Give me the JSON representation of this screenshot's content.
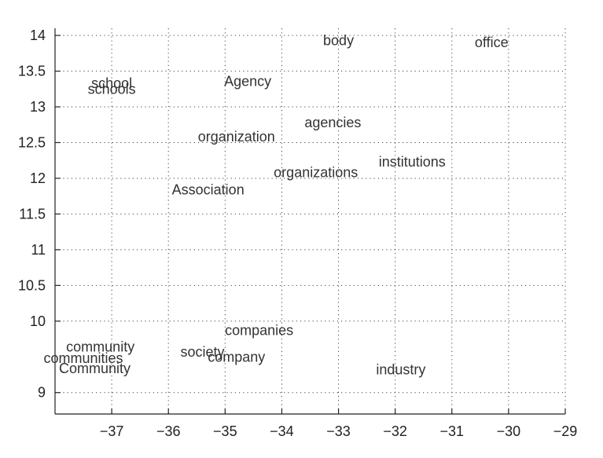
{
  "chart_data": {
    "type": "scatter",
    "title": "",
    "xlabel": "",
    "ylabel": "",
    "xlim": [
      -38,
      -29
    ],
    "ylim": [
      8.7,
      14.1
    ],
    "grid": true,
    "x_ticks": [
      -37,
      -36,
      -35,
      -34,
      -33,
      -32,
      -31,
      -30,
      -29
    ],
    "x_tick_labels": [
      "−37",
      "−36",
      "−35",
      "−34",
      "−33",
      "−32",
      "−31",
      "−30",
      "−29"
    ],
    "y_ticks": [
      9,
      10,
      10.5,
      11,
      11.5,
      12,
      12.5,
      13,
      13.5,
      14
    ],
    "y_tick_labels": [
      "9",
      "10",
      "10.5",
      "11",
      "11.5",
      "12",
      "12.5",
      "13",
      "13.5",
      "14"
    ],
    "points": [
      {
        "label": "body",
        "x": -33.0,
        "y": 13.93
      },
      {
        "label": "office",
        "x": -30.3,
        "y": 13.9
      },
      {
        "label": "school",
        "x": -37.0,
        "y": 13.33
      },
      {
        "label": "schools",
        "x": -37.0,
        "y": 13.25
      },
      {
        "label": "Agency",
        "x": -34.6,
        "y": 13.36
      },
      {
        "label": "agencies",
        "x": -33.1,
        "y": 12.78
      },
      {
        "label": "organization",
        "x": -34.8,
        "y": 12.58
      },
      {
        "label": "institutions",
        "x": -31.7,
        "y": 12.23
      },
      {
        "label": "organizations",
        "x": -33.4,
        "y": 12.08
      },
      {
        "label": "Association",
        "x": -35.3,
        "y": 11.84
      },
      {
        "label": "companies",
        "x": -34.4,
        "y": 9.87
      },
      {
        "label": "community",
        "x": -37.2,
        "y": 9.64
      },
      {
        "label": "society",
        "x": -35.4,
        "y": 9.57
      },
      {
        "label": "company",
        "x": -34.8,
        "y": 9.5
      },
      {
        "label": "communities",
        "x": -37.5,
        "y": 9.48
      },
      {
        "label": "Community",
        "x": -37.3,
        "y": 9.34
      },
      {
        "label": "industry",
        "x": -31.9,
        "y": 9.32
      }
    ]
  }
}
